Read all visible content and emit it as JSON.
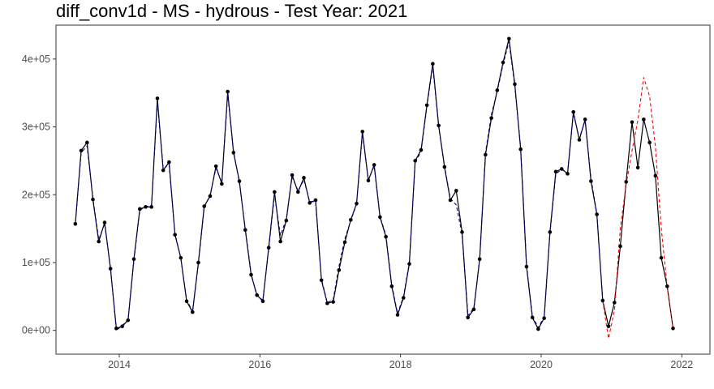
{
  "chart_data": {
    "type": "line",
    "title": "diff_conv1d - MS - hydrous - Test Year: 2021",
    "xlabel": "",
    "ylabel": "",
    "xlim": [
      2013.1,
      2022.4
    ],
    "ylim": [
      -35000,
      450000
    ],
    "x_ticks": [
      2014,
      2016,
      2018,
      2020,
      2022
    ],
    "x_tick_labels": [
      "2014",
      "2016",
      "2018",
      "2020",
      "2022"
    ],
    "y_ticks": [
      0,
      100000,
      200000,
      300000,
      400000
    ],
    "y_tick_labels": [
      "0e+00",
      "1e+05",
      "2e+05",
      "3e+05",
      "4e+05"
    ],
    "grid": false,
    "colors": {
      "actual": "#000000",
      "fitted": "#00008b",
      "forecast": "#ff0000"
    },
    "series": [
      {
        "role": "actual",
        "style": "solid-line-with-points",
        "x": [
          2013.375,
          2013.458,
          2013.542,
          2013.625,
          2013.708,
          2013.792,
          2013.875,
          2013.958,
          2014.042,
          2014.125,
          2014.208,
          2014.292,
          2014.375,
          2014.458,
          2014.542,
          2014.625,
          2014.708,
          2014.792,
          2014.875,
          2014.958,
          2015.042,
          2015.125,
          2015.208,
          2015.292,
          2015.375,
          2015.458,
          2015.542,
          2015.625,
          2015.708,
          2015.792,
          2015.875,
          2015.958,
          2016.042,
          2016.125,
          2016.208,
          2016.292,
          2016.375,
          2016.458,
          2016.542,
          2016.625,
          2016.708,
          2016.792,
          2016.875,
          2016.958,
          2017.042,
          2017.125,
          2017.208,
          2017.292,
          2017.375,
          2017.458,
          2017.542,
          2017.625,
          2017.708,
          2017.792,
          2017.875,
          2017.958,
          2018.042,
          2018.125,
          2018.208,
          2018.292,
          2018.375,
          2018.458,
          2018.542,
          2018.625,
          2018.708,
          2018.792,
          2018.875,
          2018.958,
          2019.042,
          2019.125,
          2019.208,
          2019.292,
          2019.375,
          2019.458,
          2019.542,
          2019.625,
          2019.708,
          2019.792,
          2019.875,
          2019.958,
          2020.042,
          2020.125,
          2020.208,
          2020.292,
          2020.375,
          2020.458,
          2020.542,
          2020.625,
          2020.708,
          2020.792,
          2020.875,
          2020.958,
          2021.042,
          2021.125,
          2021.208,
          2021.292,
          2021.375,
          2021.458,
          2021.542,
          2021.625,
          2021.708,
          2021.792,
          2021.875
        ],
        "y": [
          157000,
          265000,
          277000,
          193000,
          131000,
          159000,
          91000,
          3000,
          6000,
          15000,
          105000,
          179000,
          182000,
          182000,
          342000,
          236000,
          248000,
          141000,
          107000,
          43000,
          27000,
          100000,
          183000,
          198000,
          242000,
          216000,
          352000,
          262000,
          220000,
          148000,
          82000,
          52000,
          43000,
          122000,
          204000,
          131000,
          162000,
          229000,
          204000,
          225000,
          188000,
          192000,
          74000,
          40000,
          42000,
          89000,
          130000,
          163000,
          187000,
          293000,
          221000,
          244000,
          167000,
          138000,
          65000,
          23000,
          48000,
          98000,
          250000,
          266000,
          332000,
          393000,
          302000,
          241000,
          192000,
          206000,
          145000,
          19000,
          31000,
          105000,
          259000,
          313000,
          354000,
          395000,
          430000,
          363000,
          267000,
          94000,
          19000,
          2000,
          18000,
          145000,
          234000,
          238000,
          231000,
          322000,
          281000,
          311000,
          220000,
          171000,
          44000,
          6000,
          41000,
          124000,
          219000,
          307000,
          240000,
          311000,
          277000,
          228000,
          107000,
          65000,
          3000
        ]
      },
      {
        "role": "fitted",
        "style": "dashed-line",
        "x": [
          2013.375,
          2013.458,
          2013.542,
          2013.625,
          2013.708,
          2013.792,
          2013.875,
          2013.958,
          2014.042,
          2014.125,
          2014.208,
          2014.292,
          2014.375,
          2014.458,
          2014.542,
          2014.625,
          2014.708,
          2014.792,
          2014.875,
          2014.958,
          2015.042,
          2015.125,
          2015.208,
          2015.292,
          2015.375,
          2015.458,
          2015.542,
          2015.625,
          2015.708,
          2015.792,
          2015.875,
          2015.958,
          2016.042,
          2016.125,
          2016.208,
          2016.292,
          2016.375,
          2016.458,
          2016.542,
          2016.625,
          2016.708,
          2016.792,
          2016.875,
          2016.958,
          2017.042,
          2017.125,
          2017.208,
          2017.292,
          2017.375,
          2017.458,
          2017.542,
          2017.625,
          2017.708,
          2017.792,
          2017.875,
          2017.958,
          2018.042,
          2018.125,
          2018.208,
          2018.292,
          2018.375,
          2018.458,
          2018.542,
          2018.625,
          2018.708,
          2018.792,
          2018.875,
          2018.958,
          2019.042,
          2019.125,
          2019.208,
          2019.292,
          2019.375,
          2019.458,
          2019.542,
          2019.625,
          2019.708,
          2019.792,
          2019.875,
          2019.958,
          2020.042,
          2020.125,
          2020.208,
          2020.292,
          2020.375,
          2020.458,
          2020.542,
          2020.625,
          2020.708,
          2020.792,
          2020.875
        ],
        "y": [
          157000,
          262000,
          272000,
          195000,
          134000,
          157000,
          93000,
          0,
          7000,
          16000,
          103000,
          177000,
          183000,
          183000,
          338000,
          238000,
          245000,
          143000,
          106000,
          45000,
          28000,
          98000,
          181000,
          200000,
          239000,
          218000,
          348000,
          264000,
          218000,
          150000,
          84000,
          50000,
          45000,
          120000,
          200000,
          140000,
          164000,
          226000,
          206000,
          222000,
          190000,
          190000,
          76000,
          41000,
          45000,
          95000,
          135000,
          162000,
          186000,
          290000,
          222000,
          242000,
          168000,
          140000,
          67000,
          25000,
          50000,
          100000,
          247000,
          264000,
          330000,
          390000,
          300000,
          243000,
          194000,
          185000,
          142000,
          22000,
          33000,
          103000,
          262000,
          318000,
          352000,
          392000,
          426000,
          360000,
          270000,
          96000,
          21000,
          4000,
          20000,
          143000,
          231000,
          237000,
          232000,
          320000,
          283000,
          309000,
          224000,
          172000,
          46000
        ]
      },
      {
        "role": "forecast",
        "style": "dashed-line",
        "x": [
          2020.875,
          2020.958,
          2021.042,
          2021.125,
          2021.208,
          2021.292,
          2021.375,
          2021.458,
          2021.542,
          2021.625,
          2021.708,
          2021.792,
          2021.875
        ],
        "y": [
          44000,
          -12000,
          30000,
          150000,
          215000,
          265000,
          310000,
          373000,
          345000,
          270000,
          150000,
          65000,
          3000
        ]
      }
    ]
  }
}
